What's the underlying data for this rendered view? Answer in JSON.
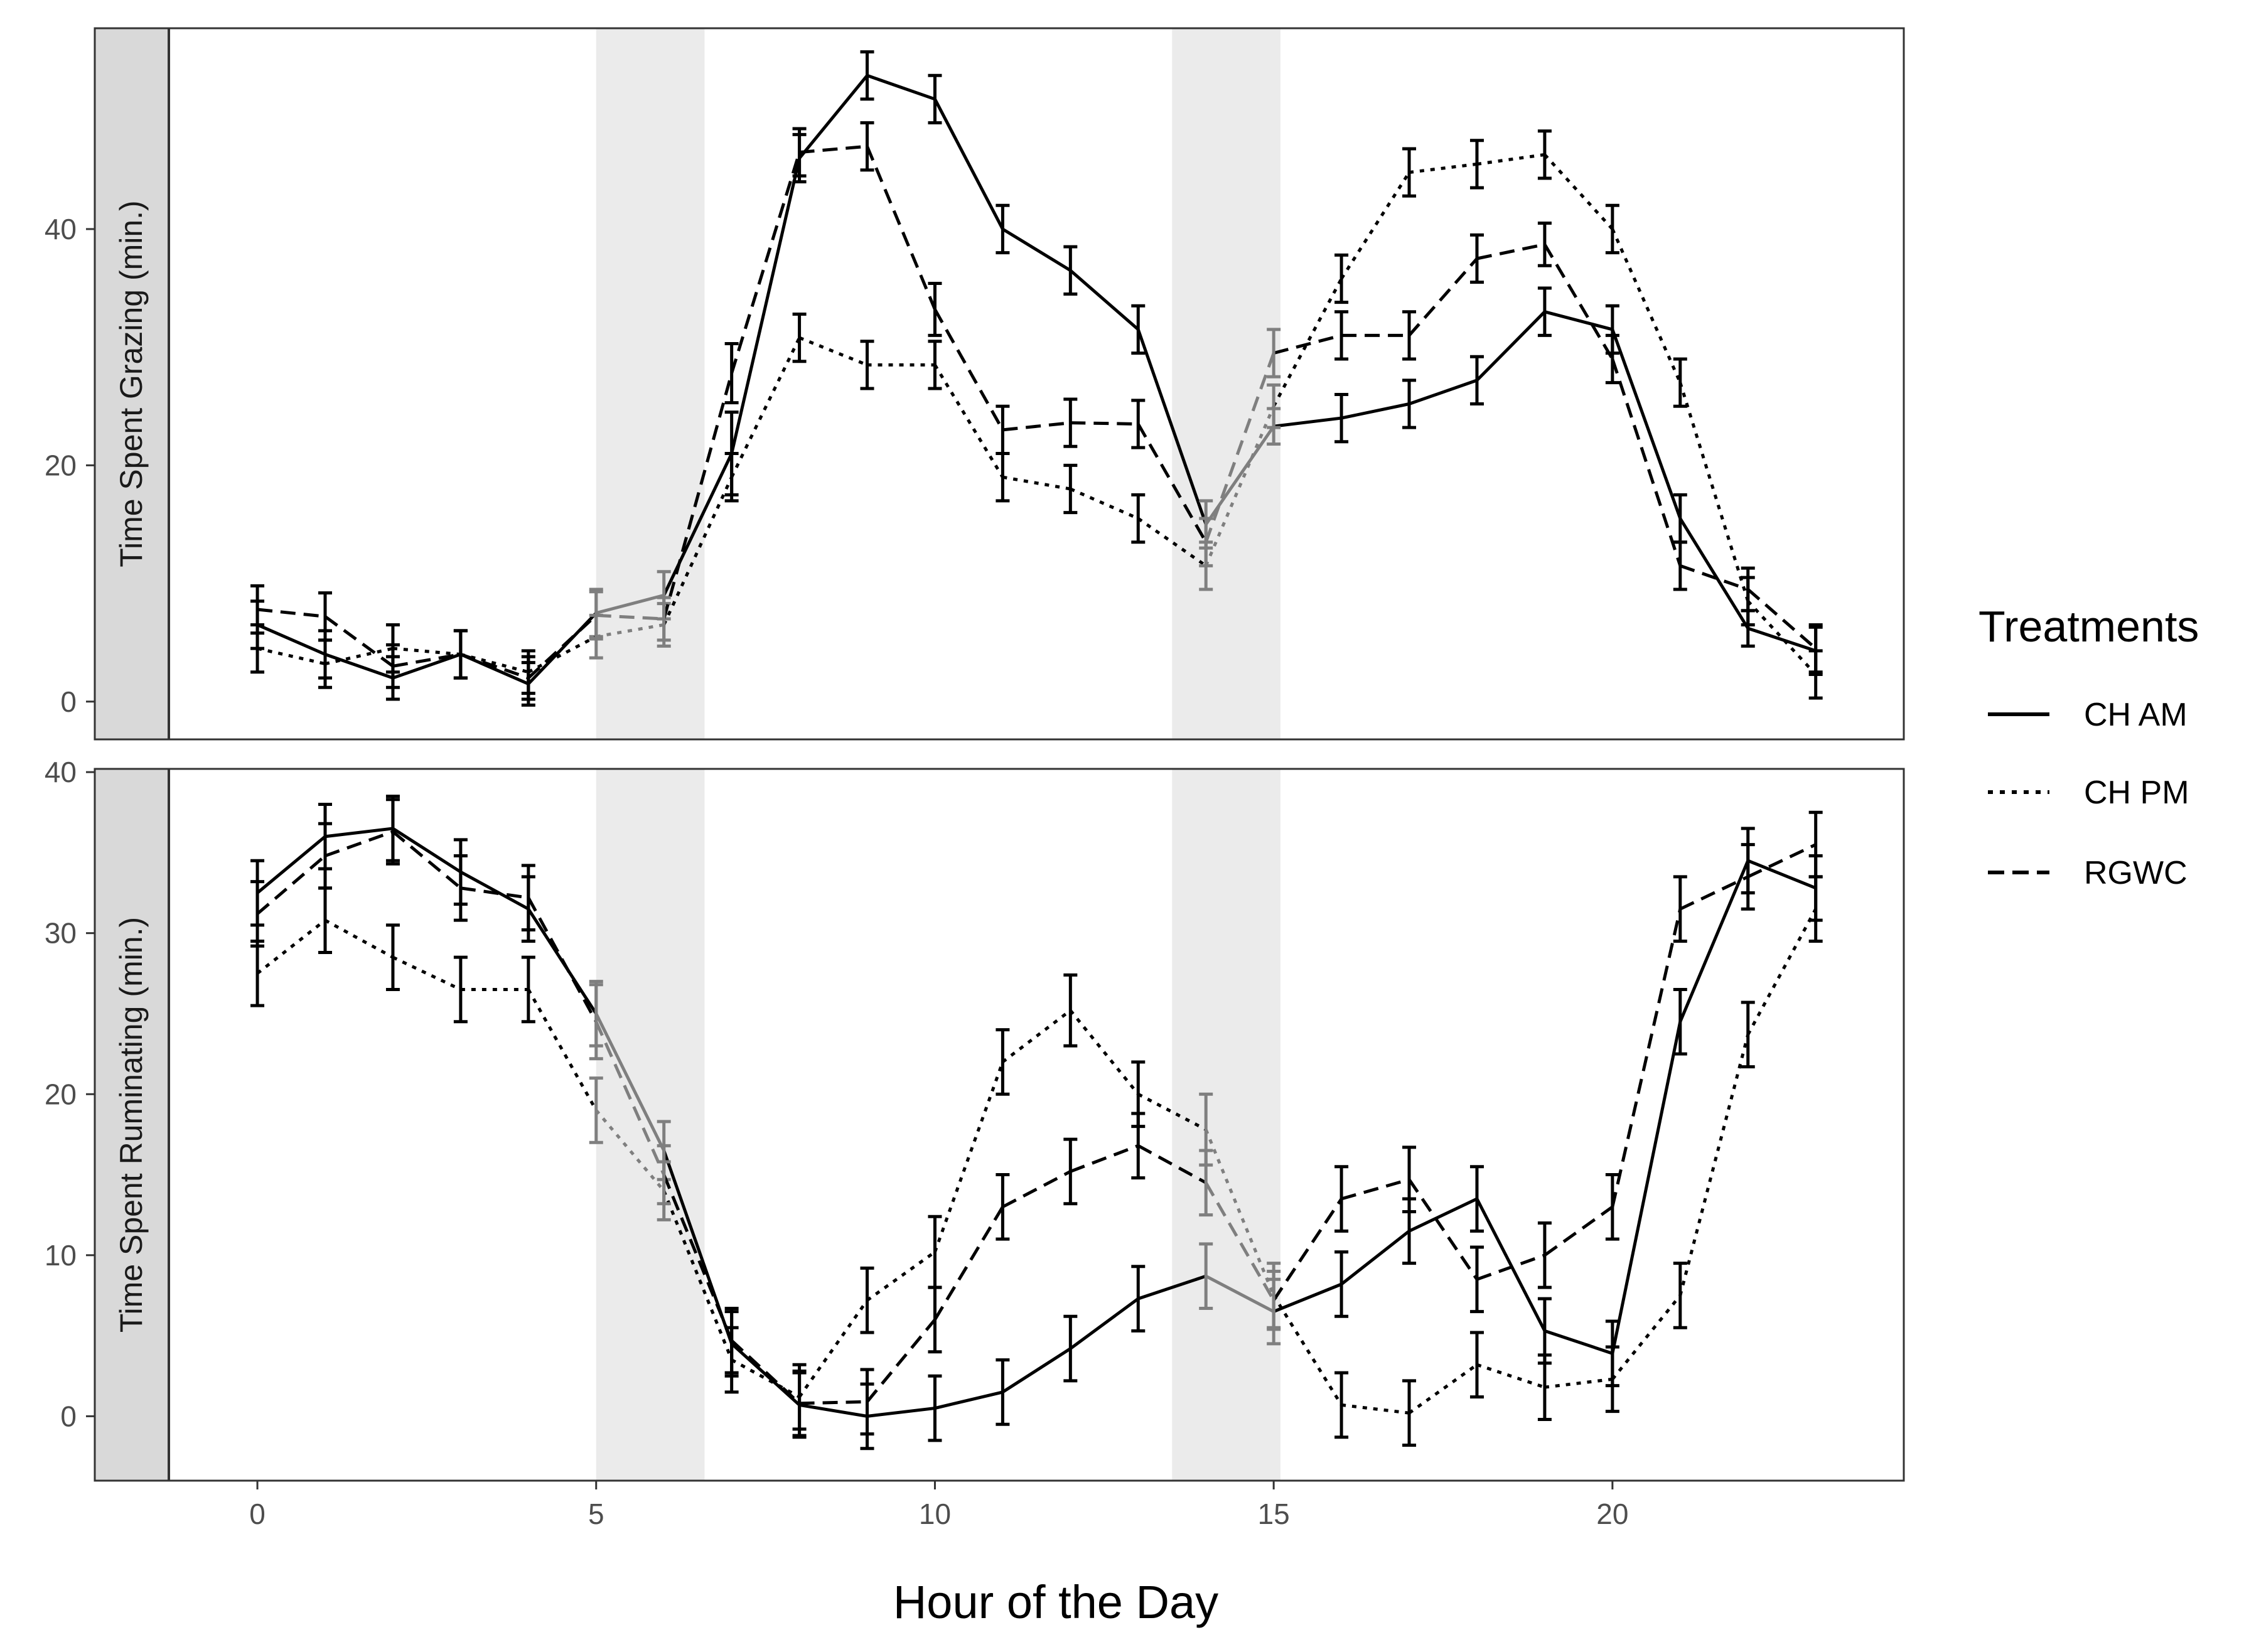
{
  "chart_data": {
    "type": "line",
    "xlabel": "Hour of the Day",
    "x_ticks": [
      0,
      5,
      10,
      15,
      20
    ],
    "x": [
      0,
      1,
      2,
      3,
      4,
      5,
      6,
      7,
      8,
      9,
      10,
      11,
      12,
      13,
      14,
      15,
      16,
      17,
      18,
      19,
      20,
      21,
      22,
      23
    ],
    "xlim": [
      -2.4,
      24.3
    ],
    "transition_bands": [
      [
        5,
        6.6
      ],
      [
        13.5,
        15.1
      ]
    ],
    "legend": {
      "title": "Treatments",
      "position": "right"
    },
    "series_styles": [
      {
        "name": "CH AM",
        "line": "solid"
      },
      {
        "name": "CH PM",
        "line": "dotted"
      },
      {
        "name": "RGWC",
        "line": "dashed"
      }
    ],
    "panels": [
      {
        "strip_label": "Time Spent Grazing (min.)",
        "ylim": [
          -3.2,
          57
        ],
        "y_ticks": [
          0,
          20,
          40
        ],
        "series": [
          {
            "name": "CH AM",
            "values": [
              6.5,
              4,
              2,
              4,
              1.5,
              7.5,
              9,
              21,
              46,
              53,
              51,
              40,
              36.5,
              31.5,
              15,
              23.3,
              24,
              25.2,
              27.2,
              33,
              31.5,
              15.5,
              6.2,
              4.3
            ],
            "errors": [
              2,
              2,
              1.8,
              2,
              1.8,
              2,
              2,
              3.5,
              2,
              2,
              2,
              2,
              2,
              2,
              2,
              1.5,
              2,
              2,
              2,
              2,
              2,
              2,
              1.5,
              2
            ]
          },
          {
            "name": "CH PM",
            "values": [
              4.5,
              3.2,
              4.5,
              4,
              2.5,
              5.5,
              6.5,
              19,
              30.8,
              28.5,
              28.5,
              19,
              18,
              15.5,
              11.5,
              25,
              35.8,
              44.8,
              45.5,
              46.3,
              40,
              27,
              8.5,
              2.3
            ],
            "errors": [
              2,
              2,
              2,
              2,
              1.8,
              1.8,
              1.8,
              2,
              2,
              2,
              2,
              2,
              2,
              2,
              2,
              1.8,
              2,
              2,
              2,
              2,
              2,
              2,
              2,
              2
            ]
          },
          {
            "name": "RGWC",
            "values": [
              7.8,
              7.2,
              3,
              4,
              2,
              7.3,
              7,
              27.8,
              46.5,
              47,
              33.2,
              23,
              23.6,
              23.5,
              13.5,
              29.5,
              31,
              31,
              37.5,
              38.7,
              29,
              11.5,
              9.5,
              4.5
            ],
            "errors": [
              2,
              2,
              1.8,
              2,
              1.8,
              2,
              1.8,
              2.5,
              2,
              2,
              2.2,
              2,
              2,
              2,
              2,
              2,
              2,
              2,
              2,
              1.8,
              2,
              2,
              1.8,
              2
            ]
          }
        ]
      },
      {
        "strip_label": "Time Spent Ruminating (min.)",
        "ylim": [
          -4,
          40.2
        ],
        "y_ticks": [
          0,
          10,
          20,
          30,
          40
        ],
        "series": [
          {
            "name": "CH AM",
            "values": [
              32.5,
              36,
              36.5,
              33.8,
              31.5,
              25,
              16.5,
              4.5,
              0.7,
              0,
              0.5,
              1.5,
              4.2,
              7.3,
              8.7,
              6.5,
              8.2,
              11.5,
              13.5,
              5.3,
              3.9,
              24.5,
              34.5,
              32.8
            ],
            "errors": [
              2,
              2,
              2,
              2,
              2,
              2,
              1.8,
              2,
              2,
              2,
              2,
              2,
              2,
              2,
              2,
              2,
              2,
              2,
              2,
              2,
              2,
              2,
              2,
              2
            ]
          },
          {
            "name": "CH PM",
            "values": [
              27.5,
              30.8,
              28.5,
              26.5,
              26.5,
              19,
              14,
              3.5,
              1.2,
              7.2,
              10.2,
              22,
              25.2,
              20,
              17.8,
              7.5,
              0.7,
              0.2,
              3.2,
              1.8,
              2.3,
              7.5,
              23.7,
              31.5
            ],
            "errors": [
              2,
              2,
              2,
              2,
              2,
              2,
              1.8,
              2,
              2,
              2,
              2.2,
              2,
              2.2,
              2,
              2.2,
              2,
              2,
              2,
              2,
              2,
              2,
              2,
              2,
              2
            ]
          },
          {
            "name": "RGWC",
            "values": [
              31.2,
              34.8,
              36.3,
              32.8,
              32.2,
              24.5,
              15,
              4.7,
              0.8,
              0.9,
              6,
              13,
              15.2,
              16.8,
              14.5,
              7.2,
              13.5,
              14.7,
              8.5,
              10,
              13,
              31.5,
              33.5,
              35.5
            ],
            "errors": [
              2,
              2,
              2,
              2,
              2,
              2.3,
              1.8,
              2,
              2,
              2,
              2,
              2,
              2,
              2,
              2,
              1.8,
              2,
              2,
              2,
              2,
              2,
              2,
              2,
              2
            ]
          }
        ]
      }
    ]
  }
}
